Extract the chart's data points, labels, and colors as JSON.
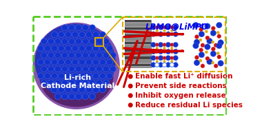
{
  "bg_color": "#ffffff",
  "outer_border_color": "#55cc22",
  "inner_border_color": "#ddaa00",
  "title_color": "#0000ee",
  "bullet_color": "#cc0000",
  "bullet_text_color": "#cc0000",
  "bullets": [
    "Enable fast Li⁺ diffusion",
    "Prevent side reactions",
    "Inhibit oxygen release",
    "Reduce residual Li species"
  ],
  "sphere_purple": "#8855aa",
  "sphere_dark": "#330044",
  "sphere_blue_bg": "#2233bb",
  "atom_blue": "#1133cc",
  "atom_blue_edge": "#4466ee",
  "atom_red": "#cc1111",
  "atom_red_edge": "#ee3333",
  "atom_yellow": "#ddaa00",
  "atom_yellow_edge": "#cc9900",
  "arrow_color": "#cc0000",
  "connector_color": "#ddaa00",
  "label_color": "#ffffff",
  "grid_color": "#5588ff",
  "tem_dark": "#444444",
  "tem_light": "#888888",
  "tem_bg": "#999999"
}
